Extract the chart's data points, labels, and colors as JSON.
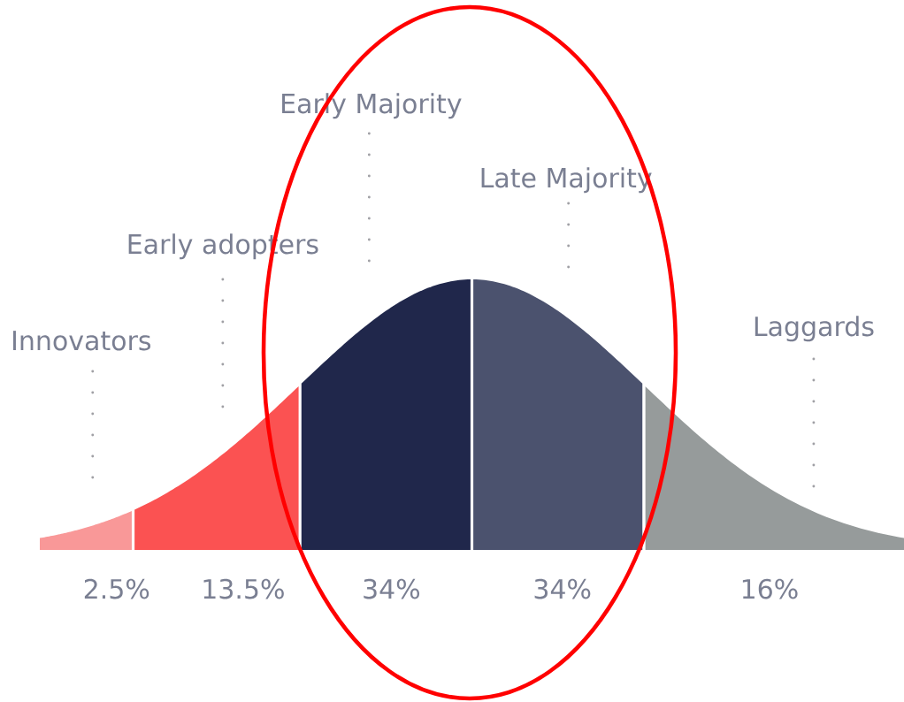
{
  "chart_data": {
    "type": "other",
    "categories": [
      "Innovators",
      "Early adopters",
      "Early Majority",
      "Late Majority",
      "Laggards"
    ],
    "values": [
      2.5,
      13.5,
      34,
      34,
      16
    ],
    "value_labels": [
      "2.5%",
      "13.5%",
      "34%",
      "34%",
      "16%"
    ],
    "colors": [
      "#f99898",
      "#fb5252",
      "#20274b",
      "#4b526e",
      "#969b9b"
    ]
  }
}
